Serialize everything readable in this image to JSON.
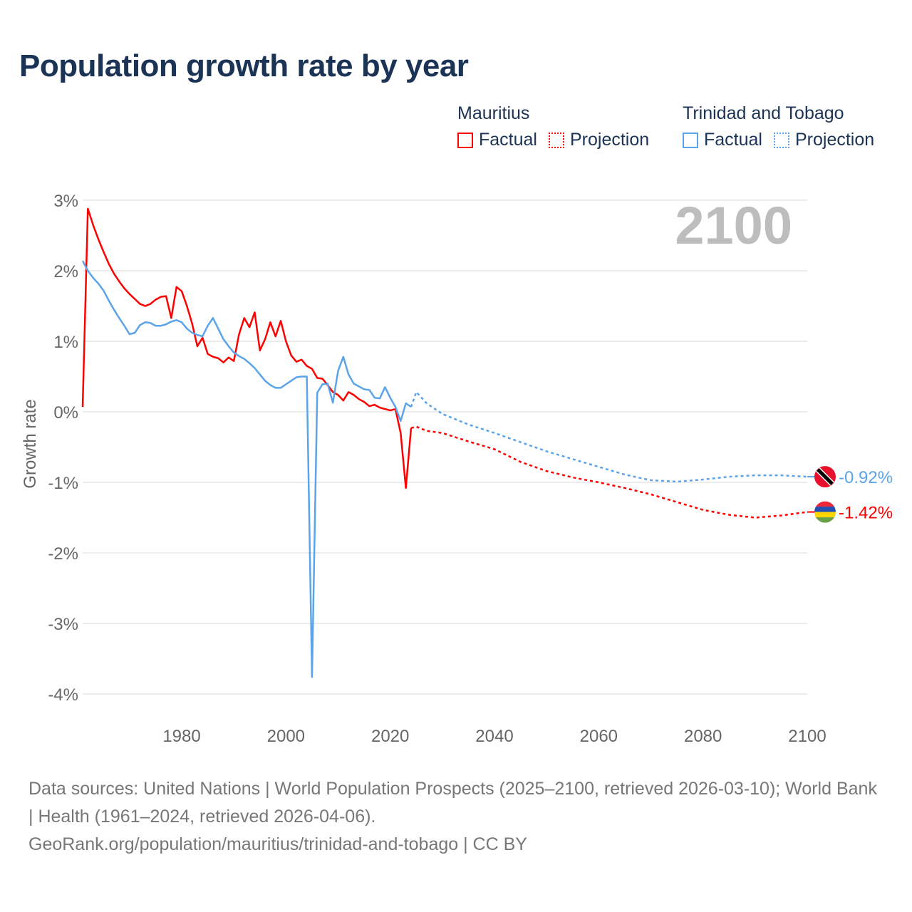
{
  "title": "Population growth rate by year",
  "legend": {
    "groups": [
      {
        "name": "Mauritius",
        "color": "#ff0000",
        "items": [
          "Factual",
          "Projection"
        ]
      },
      {
        "name": "Trinidad and Tobago",
        "color": "#5ba4ea",
        "items": [
          "Factual",
          "Projection"
        ]
      }
    ]
  },
  "year_label": "2100",
  "footer": {
    "sources": "Data sources: United Nations | World Population Prospects (2025–2100, retrieved 2026-03-10); World Bank | Health (1961–2024, retrieved 2026-04-06).",
    "link": "GeoRank.org/population/mauritius/trinidad-and-tobago | CC BY"
  },
  "chart_data": {
    "type": "line",
    "title": "Population growth rate by year",
    "xlabel": "",
    "ylabel": "Growth rate",
    "xlim": [
      1961,
      2100
    ],
    "ylim": [
      -4,
      3
    ],
    "x_ticks": [
      1980,
      2000,
      2020,
      2040,
      2060,
      2080,
      2100
    ],
    "y_ticks": [
      3,
      2,
      1,
      0,
      -1,
      -2,
      -3,
      -4
    ],
    "y_tick_labels": [
      "3%",
      "2%",
      "1%",
      "0%",
      "-1%",
      "-2%",
      "-3%",
      "-4%"
    ],
    "grid": true,
    "series": [
      {
        "name": "Mauritius",
        "color": "#ff0000",
        "end_label": "-1.42%",
        "factual": {
          "x_start": 1961,
          "values": [
            0.07,
            2.88,
            2.65,
            2.45,
            2.27,
            2.1,
            1.96,
            1.85,
            1.75,
            1.67,
            1.6,
            1.53,
            1.5,
            1.53,
            1.59,
            1.63,
            1.64,
            1.33,
            1.77,
            1.71,
            1.5,
            1.25,
            0.93,
            1.05,
            0.82,
            0.78,
            0.76,
            0.7,
            0.77,
            0.72,
            1.1,
            1.33,
            1.2,
            1.41,
            0.87,
            1.03,
            1.27,
            1.07,
            1.29,
            1.0,
            0.8,
            0.71,
            0.74,
            0.65,
            0.61,
            0.48,
            0.47,
            0.38,
            0.28,
            0.24,
            0.16,
            0.28,
            0.24,
            0.18,
            0.14,
            0.08,
            0.1,
            0.06,
            0.04,
            0.02,
            0.04,
            -0.3,
            -1.08,
            -0.23
          ]
        },
        "projection": {
          "x": [
            2024,
            2025,
            2027,
            2030,
            2035,
            2040,
            2045,
            2050,
            2055,
            2060,
            2065,
            2070,
            2075,
            2080,
            2085,
            2090,
            2095,
            2100
          ],
          "values": [
            -0.23,
            -0.21,
            -0.27,
            -0.3,
            -0.42,
            -0.53,
            -0.71,
            -0.84,
            -0.93,
            -1.0,
            -1.08,
            -1.17,
            -1.28,
            -1.39,
            -1.46,
            -1.5,
            -1.47,
            -1.42
          ]
        }
      },
      {
        "name": "Trinidad and Tobago",
        "color": "#5ba4ea",
        "end_label": "-0.92%",
        "factual": {
          "x_start": 1961,
          "values": [
            2.14,
            2.0,
            1.9,
            1.82,
            1.72,
            1.58,
            1.45,
            1.33,
            1.22,
            1.1,
            1.12,
            1.23,
            1.27,
            1.26,
            1.22,
            1.22,
            1.24,
            1.28,
            1.3,
            1.27,
            1.18,
            1.12,
            1.09,
            1.07,
            1.22,
            1.33,
            1.18,
            1.03,
            0.93,
            0.84,
            0.79,
            0.75,
            0.69,
            0.62,
            0.53,
            0.44,
            0.38,
            0.34,
            0.34,
            0.39,
            0.44,
            0.49,
            0.5,
            0.5,
            -3.76,
            0.27,
            0.39,
            0.4,
            0.13,
            0.58,
            0.78,
            0.53,
            0.4,
            0.36,
            0.32,
            0.31,
            0.2,
            0.19,
            0.35,
            0.2,
            0.07,
            -0.13,
            0.12,
            0.07
          ]
        },
        "projection": {
          "x": [
            2024,
            2025,
            2027,
            2030,
            2035,
            2040,
            2045,
            2050,
            2055,
            2060,
            2065,
            2070,
            2075,
            2080,
            2085,
            2090,
            2095,
            2100
          ],
          "values": [
            0.07,
            0.28,
            0.12,
            -0.03,
            -0.18,
            -0.3,
            -0.43,
            -0.56,
            -0.67,
            -0.78,
            -0.89,
            -0.97,
            -0.99,
            -0.96,
            -0.92,
            -0.9,
            -0.9,
            -0.92
          ]
        }
      }
    ]
  }
}
